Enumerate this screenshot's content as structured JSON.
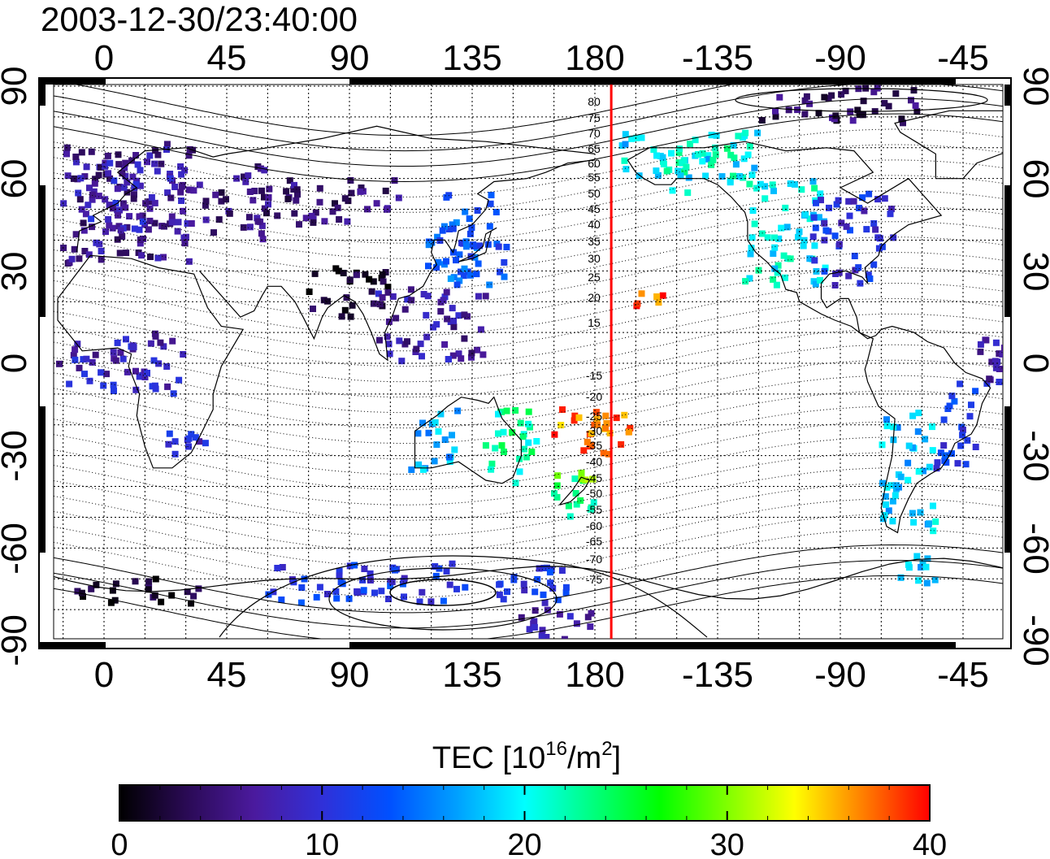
{
  "title": "2003-12-30/23:40:00",
  "map": {
    "top_lon_ticks": [
      "0",
      "45",
      "90",
      "135",
      "180",
      "-135",
      "-90",
      "-45"
    ],
    "bottom_lon_ticks": [
      "0",
      "45",
      "90",
      "135",
      "180",
      "-135",
      "-90",
      "-45"
    ],
    "left_lat_ticks": [
      "90",
      "60",
      "30",
      "0",
      "-30",
      "-60",
      "-90"
    ],
    "right_lat_ticks": [
      "90",
      "60",
      "30",
      "0",
      "-30",
      "-60",
      "-90"
    ],
    "magnetic_lat_labels_north": [
      "80",
      "75",
      "70",
      "65",
      "60",
      "55",
      "50",
      "45",
      "40",
      "35",
      "30",
      "25",
      "20",
      "15"
    ],
    "magnetic_lat_labels_south": [
      "-15",
      "-20",
      "-25",
      "-30",
      "-35",
      "-40",
      "-45",
      "-50",
      "-55",
      "-60",
      "-65",
      "-70",
      "-75"
    ],
    "terminator_color": "#ff0000",
    "terminator_lon": -174
  },
  "colorbar": {
    "label_main": "TEC  [10",
    "label_exp1": "16",
    "label_mid": "/m",
    "label_exp2": "2",
    "label_end": "]",
    "ticks": [
      "0",
      "10",
      "20",
      "30",
      "40"
    ],
    "min": 0,
    "max": 40,
    "colors": [
      "#000000",
      "#2a0a55",
      "#4b1a9e",
      "#3030d8",
      "#0050ff",
      "#00a0ff",
      "#00ffff",
      "#00ff80",
      "#00ff00",
      "#80ff00",
      "#ffff00",
      "#ff8000",
      "#ff0000"
    ]
  },
  "tec_regions": [
    {
      "lon": [
        -15,
        35
      ],
      "lat": [
        32,
        72
      ],
      "tec": 6
    },
    {
      "lon": [
        -10,
        30
      ],
      "lat": [
        42,
        66
      ],
      "tec": 8
    },
    {
      "lon": [
        35,
        60
      ],
      "lat": [
        40,
        65
      ],
      "tec": 5
    },
    {
      "lon": [
        60,
        110
      ],
      "lat": [
        45,
        60
      ],
      "tec": 5
    },
    {
      "lon": [
        75,
        105
      ],
      "lat": [
        15,
        32
      ],
      "tec": 2
    },
    {
      "lon": [
        122,
        148
      ],
      "lat": [
        28,
        55
      ],
      "tec": 13
    },
    {
      "lon": [
        118,
        142
      ],
      "lat": [
        25,
        40
      ],
      "tec": 14
    },
    {
      "lon": [
        -170,
        -120
      ],
      "lat": [
        60,
        75
      ],
      "tec": 19
    },
    {
      "lon": [
        -160,
        -125
      ],
      "lat": [
        55,
        70
      ],
      "tec": 21
    },
    {
      "lon": [
        -125,
        -95
      ],
      "lat": [
        25,
        60
      ],
      "tec": 20
    },
    {
      "lon": [
        -100,
        -70
      ],
      "lat": [
        25,
        55
      ],
      "tec": 10
    },
    {
      "lon": [
        -120,
        -60
      ],
      "lat": [
        78,
        90
      ],
      "tec": 4
    },
    {
      "lon": [
        -165,
        -155
      ],
      "lat": [
        18,
        25
      ],
      "tec": 38
    },
    {
      "lon": [
        165,
        200
      ],
      "lat": [
        -30,
        -15
      ],
      "tec": 37
    },
    {
      "lon": [
        140,
        160
      ],
      "lat": [
        -40,
        -15
      ],
      "tec": 22
    },
    {
      "lon": [
        165,
        180
      ],
      "lat": [
        -50,
        -35
      ],
      "tec": 24
    },
    {
      "lon": [
        165,
        180
      ],
      "lat": [
        -40,
        -35
      ],
      "tec": 31
    },
    {
      "lon": [
        112,
        130
      ],
      "lat": [
        -35,
        -15
      ],
      "tec": 17
    },
    {
      "lon": [
        -55,
        -40
      ],
      "lat": [
        -35,
        -5
      ],
      "tec": 11
    },
    {
      "lon": [
        -75,
        -55
      ],
      "lat": [
        -55,
        -15
      ],
      "tec": 18
    },
    {
      "lon": [
        -75,
        -55
      ],
      "lat": [
        -72,
        -62
      ],
      "tec": 17
    },
    {
      "lon": [
        60,
        170
      ],
      "lat": [
        -78,
        -65
      ],
      "tec": 11
    },
    {
      "lon": [
        -15,
        35
      ],
      "lat": [
        -78,
        -70
      ],
      "tec": 2
    },
    {
      "lon": [
        150,
        180
      ],
      "lat": [
        -90,
        -80
      ],
      "tec": 8
    },
    {
      "lon": [
        20,
        40
      ],
      "lat": [
        -30,
        -20
      ],
      "tec": 9
    },
    {
      "lon": [
        -40,
        30
      ],
      "lat": [
        -10,
        10
      ],
      "tec": 8
    },
    {
      "lon": [
        100,
        140
      ],
      "lat": [
        0,
        25
      ],
      "tec": 7
    }
  ]
}
